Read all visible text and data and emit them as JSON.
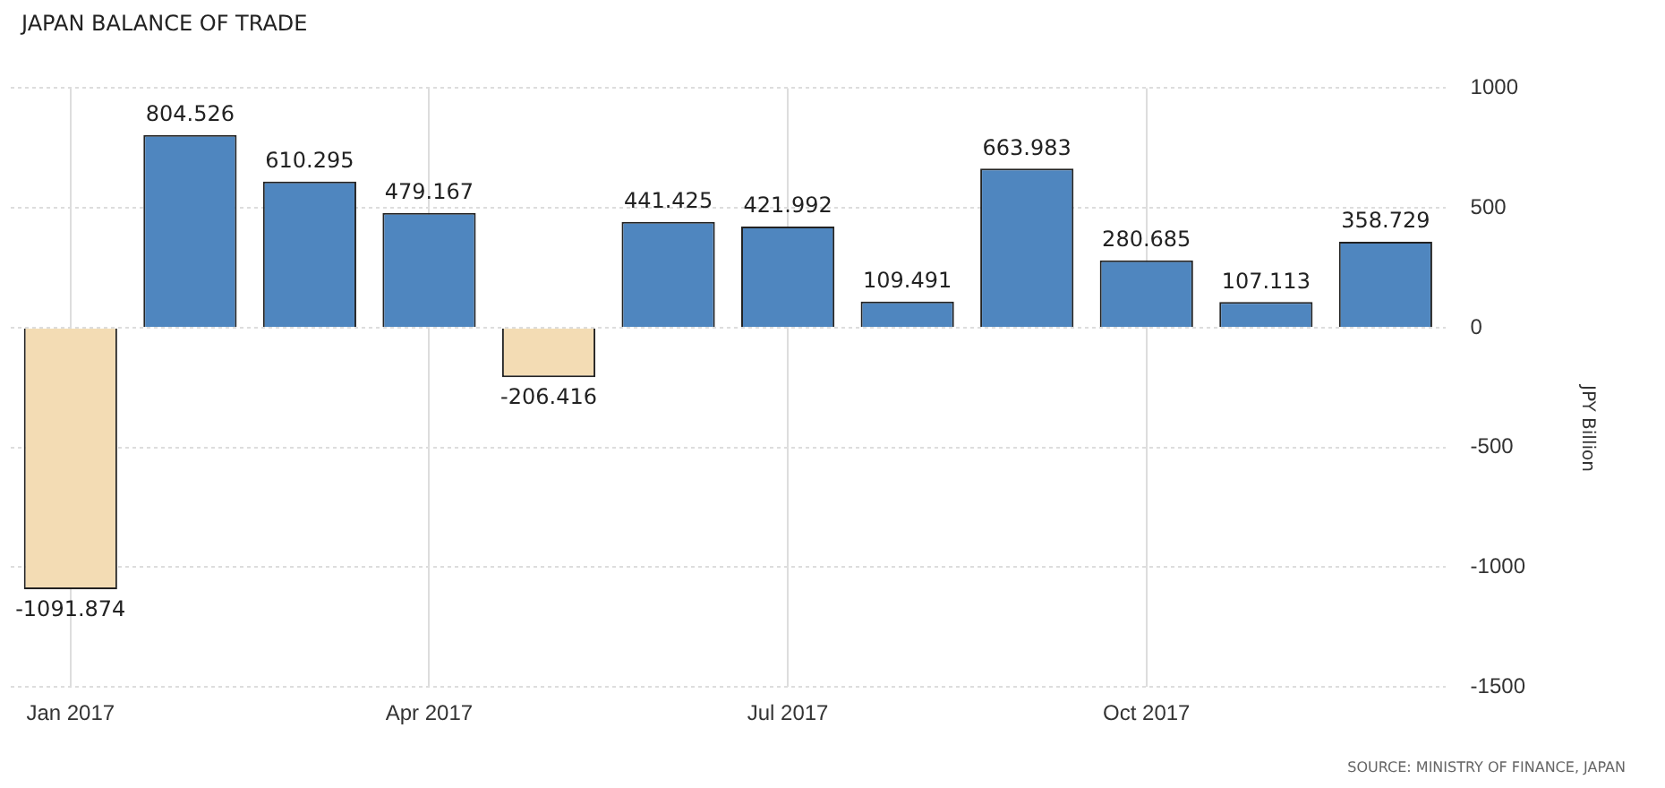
{
  "chart_data": {
    "type": "bar",
    "title": "JAPAN BALANCE OF TRADE",
    "ylabel": "JPY Billion",
    "categories": [
      "Jan 2017",
      null,
      null,
      "Apr 2017",
      null,
      null,
      "Jul 2017",
      null,
      null,
      "Oct 2017",
      null,
      null
    ],
    "values": [
      -1091.874,
      804.526,
      610.295,
      479.167,
      -206.416,
      441.425,
      421.992,
      109.491,
      663.983,
      280.685,
      107.113,
      358.729
    ],
    "colors": [
      "#f3dcb4",
      "#4f86bf",
      "#4f86bf",
      "#4f86bf",
      "#f3dcb4",
      "#4f86bf",
      "#4f86bf",
      "#4f86bf",
      "#4f86bf",
      "#4f86bf",
      "#4f86bf",
      "#4f86bf"
    ],
    "ylim": [
      -1500,
      1000
    ],
    "yticks": [
      -1500,
      -1000,
      -500,
      0,
      500,
      1000
    ],
    "grid": true,
    "data_labels": true,
    "annotations": [
      "SOURCE: MINISTRY OF FINANCE, JAPAN"
    ]
  }
}
